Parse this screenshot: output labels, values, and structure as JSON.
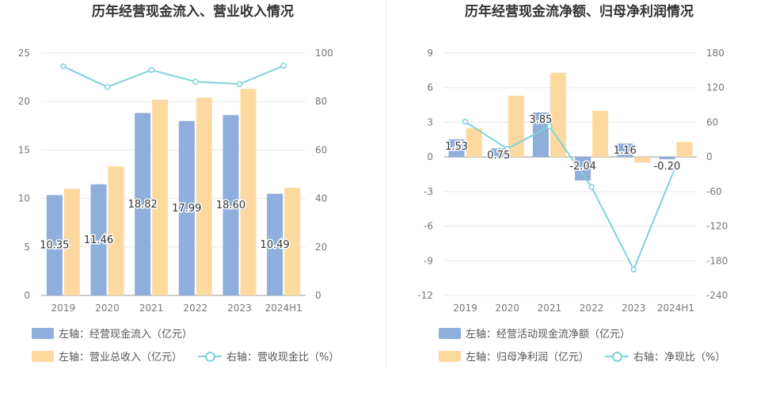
{
  "colors": {
    "bar1": "#8eaedb",
    "bar2": "#fed99f",
    "line": "#7dd3d8",
    "grid": "#e8e8ee",
    "axis_text": "#777777"
  },
  "chart_data": [
    {
      "type": "bar",
      "title": "历年经营现金流入、营业收入情况",
      "categories": [
        "2019",
        "2020",
        "2021",
        "2022",
        "2023",
        "2024H1"
      ],
      "left_axis": {
        "ylim": [
          0,
          25
        ],
        "ticks": [
          "0",
          "5",
          "10",
          "15",
          "20",
          "25"
        ]
      },
      "right_axis": {
        "ylim": [
          0,
          100
        ],
        "ticks": [
          "0",
          "20",
          "40",
          "60",
          "80",
          "100"
        ]
      },
      "series": [
        {
          "name": "左轴：经营现金流入（亿元）",
          "kind": "bar",
          "axis": "left",
          "values": [
            10.35,
            11.46,
            18.82,
            17.99,
            18.6,
            10.49
          ],
          "labels": [
            "10.35",
            "11.46",
            "18.82",
            "17.99",
            "18.60",
            "10.49"
          ]
        },
        {
          "name": "左轴：营业总收入（亿元）",
          "kind": "bar",
          "axis": "left",
          "values": [
            11.0,
            13.3,
            20.2,
            20.4,
            21.3,
            11.1
          ]
        },
        {
          "name": "右轴：营收现金比（%）",
          "kind": "line",
          "axis": "right",
          "values": [
            94.5,
            86.0,
            93.0,
            88.2,
            87.2,
            94.8
          ]
        }
      ],
      "grid": true,
      "legend_position": "bottom"
    },
    {
      "type": "bar",
      "title": "历年经营现金流净额、归母净利润情况",
      "categories": [
        "2019",
        "2020",
        "2021",
        "2022",
        "2023",
        "2024H1"
      ],
      "left_axis": {
        "ylim": [
          -12,
          9
        ],
        "ticks": [
          "-12",
          "-9",
          "-6",
          "-3",
          "0",
          "3",
          "6",
          "9"
        ]
      },
      "right_axis": {
        "ylim": [
          -240,
          180
        ],
        "ticks": [
          "-240",
          "-180",
          "-120",
          "-60",
          "0",
          "60",
          "120",
          "180"
        ]
      },
      "series": [
        {
          "name": "左轴：经营活动现金流净额（亿元）",
          "kind": "bar",
          "axis": "left",
          "values": [
            1.53,
            0.75,
            3.85,
            -2.04,
            1.16,
            -0.2
          ],
          "labels": [
            "1.53",
            "0.75",
            "3.85",
            "-2.04",
            "1.16",
            "-0.20"
          ]
        },
        {
          "name": "左轴：归母净利润（亿元）",
          "kind": "bar",
          "axis": "left",
          "values": [
            2.5,
            5.3,
            7.3,
            4.0,
            -0.5,
            1.3
          ]
        },
        {
          "name": "右轴：净现比（%）",
          "kind": "line",
          "axis": "right",
          "values": [
            61,
            14,
            53,
            -52,
            -195,
            -16
          ]
        }
      ],
      "grid": true,
      "legend_position": "bottom"
    }
  ]
}
